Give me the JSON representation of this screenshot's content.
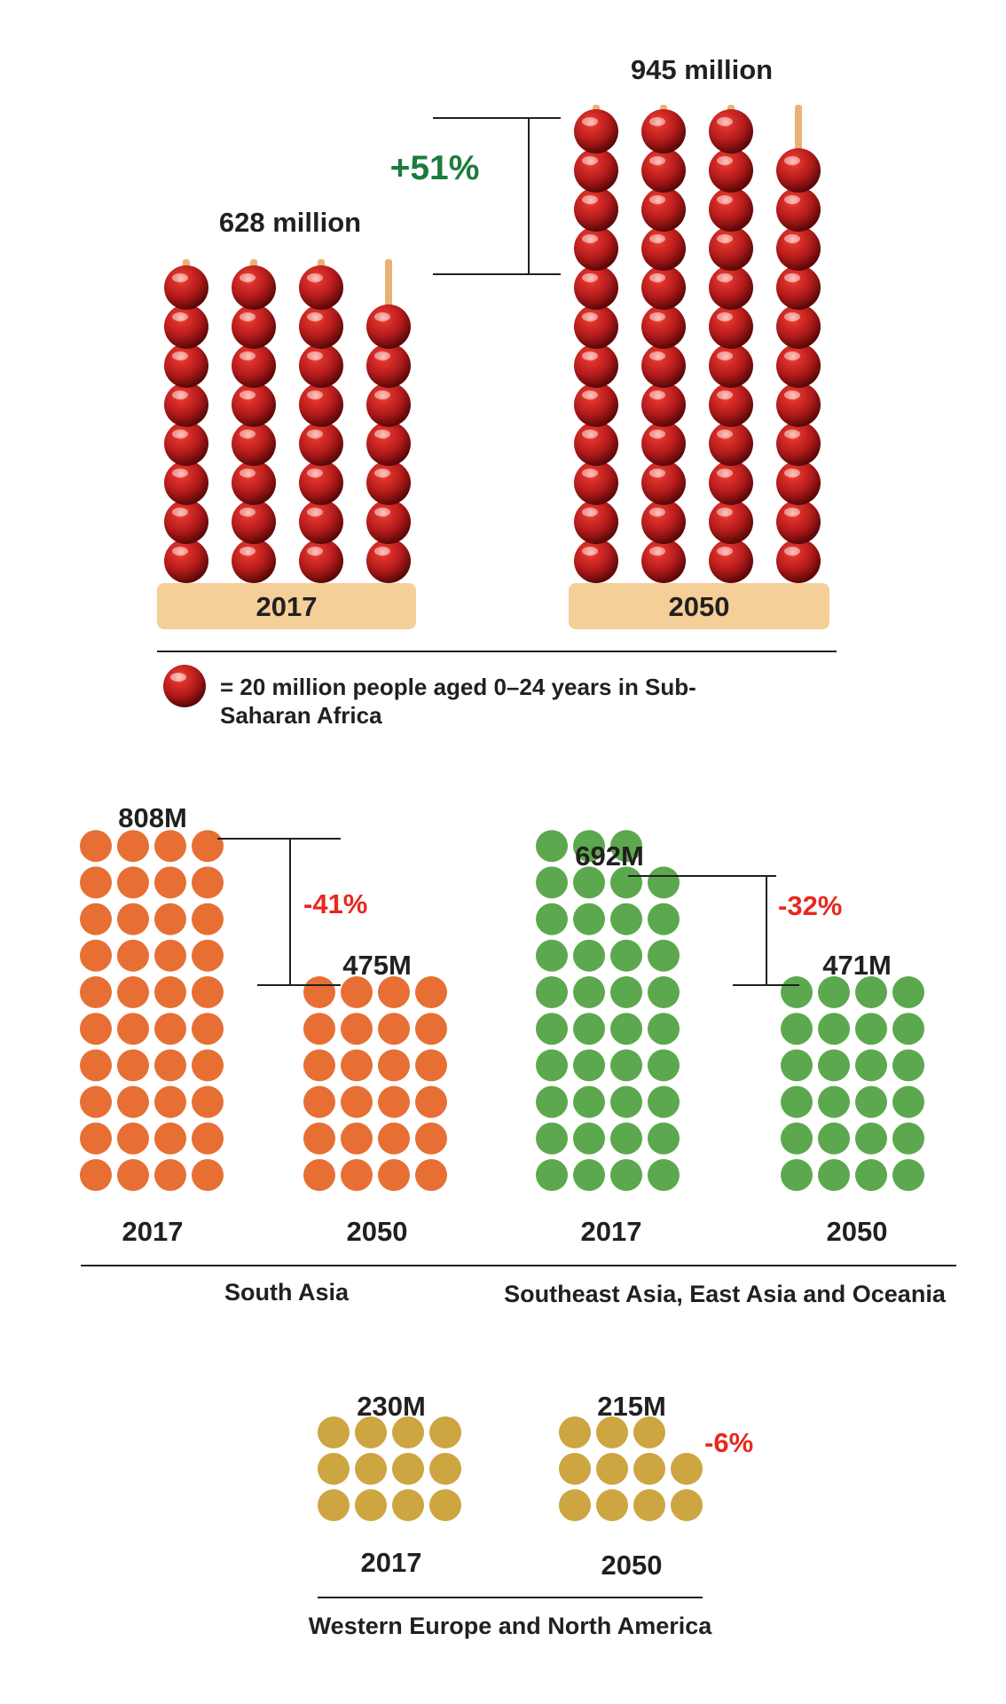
{
  "colors": {
    "bead": "#b51d1d",
    "stick": "#e9b277",
    "base": "#f5cf98",
    "south_asia": "#e76f34",
    "east_asia": "#5ca84e",
    "western": "#cda541",
    "percent_up": "#1e7b3e",
    "percent_down": "#e8281e",
    "text": "#231f20",
    "rule": "#231f20"
  },
  "chart_data": [
    {
      "id": "ssa",
      "type": "pictogram",
      "unit_value_million": 20,
      "legend": "= 20 million people aged 0–24 years in Sub-Saharan Africa",
      "legend_line1": "= 20 million people aged 0–24 years in Sub-",
      "legend_line2": "Saharan Africa",
      "change": "+51%",
      "bars": [
        {
          "year": "2017",
          "label": "628 million",
          "value_million": 628,
          "column_counts": [
            8,
            8,
            8,
            7
          ]
        },
        {
          "year": "2050",
          "label": "945 million",
          "value_million": 945,
          "column_counts": [
            12,
            12,
            12,
            11
          ]
        }
      ]
    },
    {
      "id": "south_asia",
      "type": "pictogram",
      "region": "South Asia",
      "change": "-41%",
      "bars": [
        {
          "year": "2017",
          "label": "808M",
          "value_million": 808,
          "column_counts": [
            10,
            10,
            10,
            10
          ]
        },
        {
          "year": "2050",
          "label": "475M",
          "value_million": 475,
          "column_counts": [
            6,
            6,
            6,
            6
          ]
        }
      ]
    },
    {
      "id": "east_asia",
      "type": "pictogram",
      "region": "Southeast Asia, East Asia and Oceania",
      "change": "-32%",
      "bars": [
        {
          "year": "2017",
          "label": "692M",
          "value_million": 692,
          "column_counts": [
            10,
            10,
            10,
            9
          ]
        },
        {
          "year": "2050",
          "label": "471M",
          "value_million": 471,
          "column_counts": [
            6,
            6,
            6,
            6
          ]
        }
      ]
    },
    {
      "id": "western",
      "type": "pictogram",
      "region": "Western Europe and North America",
      "change": "-6%",
      "bars": [
        {
          "year": "2017",
          "label": "230M",
          "value_million": 230,
          "column_counts": [
            3,
            3,
            3,
            3
          ]
        },
        {
          "year": "2050",
          "label": "215M",
          "value_million": 215,
          "column_counts": [
            3,
            3,
            3,
            2
          ]
        }
      ]
    }
  ]
}
